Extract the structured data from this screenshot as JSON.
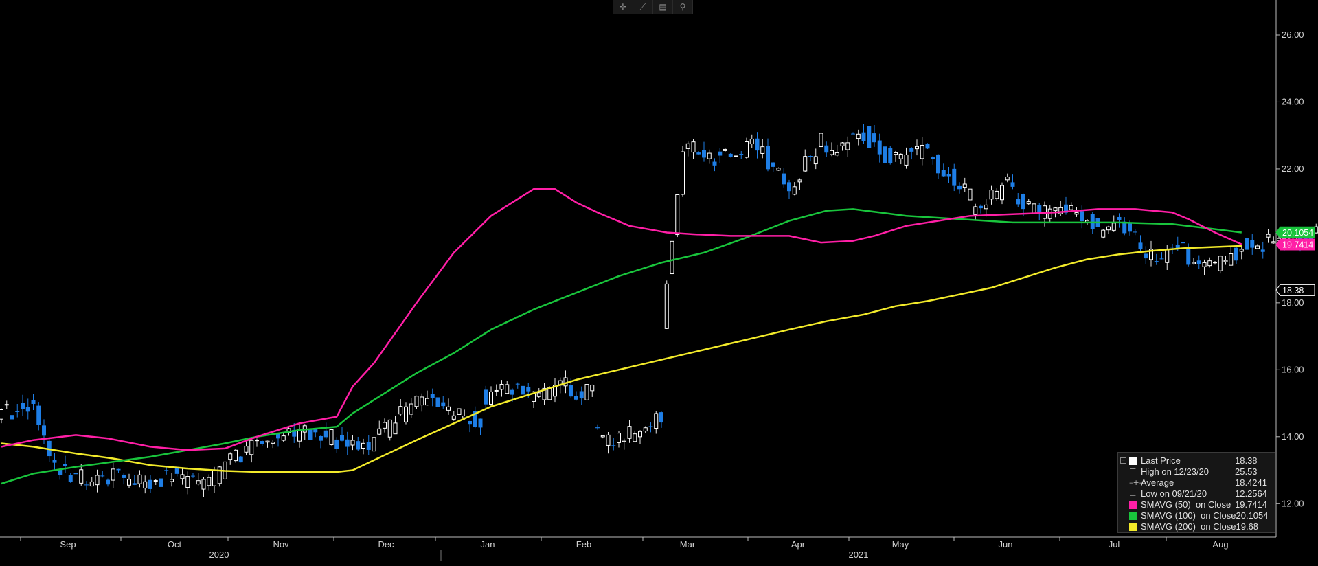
{
  "toolbar": {
    "icons": [
      "crosshair-icon",
      "draw-icon",
      "table-icon",
      "zoom-icon"
    ]
  },
  "chart_data": {
    "type": "candlestick",
    "grid": false,
    "legend_position": "bottom-right",
    "ylim": [
      11.0,
      26.8
    ],
    "y_ticks": [
      "12.00",
      "14.00",
      "16.00",
      "18.00",
      "20.00",
      "22.00",
      "24.00",
      "26.00"
    ],
    "month_labels": [
      "Sep",
      "Oct",
      "Nov",
      "Dec",
      "Jan",
      "Feb",
      "Mar",
      "Apr",
      "May",
      "Jun",
      "Jul",
      "Aug"
    ],
    "year_labels": [
      "2020",
      "2021"
    ],
    "colors": {
      "up": "#ffffff",
      "down": "#1e7ee6",
      "sma50": "#ff1fa6",
      "sma100": "#19c43c",
      "sma200": "#f2ea2a"
    },
    "price_tags": [
      {
        "value": 20.1054,
        "label": "20.1054",
        "color": "#19c43c"
      },
      {
        "value": 19.7414,
        "label": "19.7414",
        "color": "#ff1fa6"
      },
      {
        "value": 18.38,
        "label": "18.38",
        "color": "#ffffff"
      }
    ],
    "legend": [
      {
        "label": "Last Price",
        "value": "18.38",
        "kind": "box",
        "color": "#ffffff"
      },
      {
        "label": "High on 12/23/20",
        "value": "25.53",
        "kind": "glyph",
        "glyph": "⊤"
      },
      {
        "label": "Average",
        "value": "18.4241",
        "kind": "glyph",
        "glyph": "–+–"
      },
      {
        "label": "Low on 09/21/20",
        "value": "12.2564",
        "kind": "glyph",
        "glyph": "⊥"
      },
      {
        "label": "SMAVG (50)  on Close",
        "value": "19.7414",
        "kind": "box",
        "color": "#ff1fa6"
      },
      {
        "label": "SMAVG (100)  on Close",
        "value": "20.1054",
        "kind": "box",
        "color": "#19c43c"
      },
      {
        "label": "SMAVG (200)  on Close",
        "value": "19.68",
        "kind": "box",
        "color": "#f2ea2a"
      }
    ],
    "segments": [
      [
        14.8,
        14.7,
        2
      ],
      [
        14.6,
        14.8,
        3
      ],
      [
        14.9,
        15.0,
        2
      ],
      [
        15.0,
        13.1,
        4
      ],
      [
        13.0,
        12.8,
        6
      ],
      [
        12.7,
        12.8,
        6
      ],
      [
        12.8,
        12.7,
        6
      ],
      [
        12.6,
        12.9,
        4
      ],
      [
        12.8,
        12.6,
        5
      ],
      [
        12.6,
        13.0,
        5
      ],
      [
        13.2,
        13.8,
        6
      ],
      [
        13.9,
        14.2,
        6
      ],
      [
        14.1,
        14.1,
        6
      ],
      [
        14.1,
        13.7,
        5
      ],
      [
        13.6,
        13.8,
        5
      ],
      [
        13.9,
        14.8,
        6
      ],
      [
        14.9,
        15.1,
        5
      ],
      [
        15.0,
        14.7,
        4
      ],
      [
        14.6,
        14.5,
        5
      ],
      [
        15.2,
        15.4,
        5
      ],
      [
        15.4,
        15.2,
        5
      ],
      [
        15.3,
        15.5,
        6
      ],
      [
        15.4,
        15.3,
        5
      ],
      [
        14.2,
        13.7,
        4
      ],
      [
        13.7,
        14.4,
        5
      ],
      [
        14.4,
        14.6,
        4
      ],
      [
        17.5,
        22.6,
        4
      ],
      [
        22.7,
        22.3,
        7
      ],
      [
        22.3,
        22.8,
        7
      ],
      [
        22.6,
        21.5,
        6
      ],
      [
        21.5,
        22.8,
        6
      ],
      [
        22.5,
        23.1,
        8
      ],
      [
        23.0,
        22.3,
        5
      ],
      [
        22.3,
        22.5,
        7
      ],
      [
        22.3,
        21.2,
        8
      ],
      [
        20.8,
        21.5,
        7
      ],
      [
        21.4,
        20.6,
        6
      ],
      [
        20.7,
        20.9,
        5
      ],
      [
        20.8,
        20.3,
        6
      ],
      [
        20.2,
        20.4,
        4
      ],
      [
        20.3,
        19.4,
        6
      ],
      [
        19.3,
        19.6,
        6
      ],
      [
        19.5,
        19.0,
        5
      ],
      [
        19.0,
        19.6,
        6
      ],
      [
        19.7,
        19.8,
        5
      ],
      [
        19.8,
        20.0,
        8
      ],
      [
        20.1,
        20.8,
        5
      ],
      [
        20.7,
        19.9,
        5
      ],
      [
        19.8,
        19.7,
        6
      ],
      [
        19.8,
        19.6,
        6
      ],
      [
        19.6,
        19.4,
        6
      ],
      [
        19.4,
        19.5,
        5
      ],
      [
        19.5,
        19.2,
        8
      ],
      [
        19.3,
        19.6,
        5
      ],
      [
        19.6,
        19.9,
        4
      ],
      [
        19.9,
        20.1,
        4
      ],
      [
        20.1,
        20.4,
        5
      ],
      [
        20.3,
        20.1,
        5
      ],
      [
        20.0,
        19.9,
        4
      ],
      [
        19.9,
        19.7,
        5
      ],
      [
        19.7,
        19.5,
        5
      ],
      [
        19.5,
        19.3,
        5
      ],
      [
        19.3,
        20.0,
        4
      ],
      [
        20.0,
        20.8,
        5
      ],
      [
        20.8,
        20.7,
        4
      ],
      [
        20.8,
        21.7,
        4
      ],
      [
        21.8,
        22.2,
        5
      ],
      [
        22.3,
        22.5,
        5
      ],
      [
        20.1,
        18.8,
        4
      ],
      [
        18.9,
        19.6,
        5
      ],
      [
        19.8,
        20.4,
        4
      ],
      [
        20.5,
        21.5,
        4
      ],
      [
        21.4,
        20.9,
        7
      ],
      [
        20.8,
        20.2,
        5
      ],
      [
        20.3,
        20.6,
        5
      ],
      [
        20.6,
        20.4,
        5
      ],
      [
        20.7,
        21.3,
        5
      ],
      [
        21.2,
        20.8,
        4
      ],
      [
        20.7,
        20.3,
        4
      ],
      [
        20.3,
        20.0,
        5
      ],
      [
        19.9,
        19.5,
        4
      ],
      [
        19.6,
        19.9,
        5
      ],
      [
        20.0,
        20.3,
        5
      ],
      [
        20.3,
        20.4,
        5
      ],
      [
        20.4,
        20.2,
        4
      ],
      [
        18.2,
        16.9,
        4
      ],
      [
        17.2,
        17.6,
        5
      ],
      [
        18.0,
        17.9,
        4
      ],
      [
        17.6,
        17.1,
        4
      ],
      [
        17.0,
        17.1,
        3
      ],
      [
        17.3,
        17.6,
        3
      ],
      [
        18.0,
        18.4,
        3
      ]
    ],
    "sma50": [
      [
        0,
        13.7
      ],
      [
        6,
        13.9
      ],
      [
        14,
        14.05
      ],
      [
        20,
        13.95
      ],
      [
        28,
        13.7
      ],
      [
        35,
        13.6
      ],
      [
        42,
        13.65
      ],
      [
        48,
        14.0
      ],
      [
        56,
        14.4
      ],
      [
        63,
        14.6
      ],
      [
        66,
        15.5
      ],
      [
        70,
        16.2
      ],
      [
        78,
        18.0
      ],
      [
        85,
        19.5
      ],
      [
        92,
        20.6
      ],
      [
        100,
        21.4
      ],
      [
        104,
        21.4
      ],
      [
        108,
        21.0
      ],
      [
        112,
        20.7
      ],
      [
        118,
        20.3
      ],
      [
        125,
        20.1
      ],
      [
        130,
        20.05
      ],
      [
        137,
        20.0
      ],
      [
        144,
        20.0
      ],
      [
        148,
        20.0
      ],
      [
        154,
        19.8
      ],
      [
        160,
        19.85
      ],
      [
        164,
        20.0
      ],
      [
        170,
        20.3
      ],
      [
        176,
        20.45
      ],
      [
        182,
        20.6
      ],
      [
        190,
        20.65
      ],
      [
        198,
        20.7
      ],
      [
        206,
        20.8
      ],
      [
        213,
        20.8
      ],
      [
        220,
        20.7
      ],
      [
        223,
        20.5
      ],
      [
        228,
        20.1
      ],
      [
        233,
        19.75
      ]
    ],
    "sma100": [
      [
        0,
        12.6
      ],
      [
        6,
        12.9
      ],
      [
        14,
        13.1
      ],
      [
        21,
        13.25
      ],
      [
        28,
        13.4
      ],
      [
        35,
        13.6
      ],
      [
        42,
        13.8
      ],
      [
        48,
        14.0
      ],
      [
        56,
        14.2
      ],
      [
        63,
        14.3
      ],
      [
        66,
        14.7
      ],
      [
        70,
        15.1
      ],
      [
        78,
        15.9
      ],
      [
        85,
        16.5
      ],
      [
        92,
        17.2
      ],
      [
        100,
        17.8
      ],
      [
        108,
        18.3
      ],
      [
        116,
        18.8
      ],
      [
        124,
        19.2
      ],
      [
        132,
        19.5
      ],
      [
        140,
        19.95
      ],
      [
        148,
        20.45
      ],
      [
        155,
        20.75
      ],
      [
        160,
        20.8
      ],
      [
        165,
        20.7
      ],
      [
        170,
        20.6
      ],
      [
        180,
        20.5
      ],
      [
        190,
        20.4
      ],
      [
        200,
        20.4
      ],
      [
        210,
        20.4
      ],
      [
        220,
        20.35
      ],
      [
        228,
        20.2
      ],
      [
        233,
        20.1
      ]
    ],
    "sma200": [
      [
        0,
        13.8
      ],
      [
        6,
        13.7
      ],
      [
        14,
        13.5
      ],
      [
        21,
        13.35
      ],
      [
        28,
        13.15
      ],
      [
        35,
        13.05
      ],
      [
        42,
        12.98
      ],
      [
        48,
        12.95
      ],
      [
        56,
        12.95
      ],
      [
        63,
        12.95
      ],
      [
        66,
        13.0
      ],
      [
        70,
        13.3
      ],
      [
        78,
        13.9
      ],
      [
        85,
        14.4
      ],
      [
        92,
        14.9
      ],
      [
        100,
        15.3
      ],
      [
        108,
        15.7
      ],
      [
        116,
        16.0
      ],
      [
        124,
        16.3
      ],
      [
        132,
        16.6
      ],
      [
        140,
        16.9
      ],
      [
        148,
        17.2
      ],
      [
        155,
        17.45
      ],
      [
        162,
        17.65
      ],
      [
        168,
        17.9
      ],
      [
        174,
        18.05
      ],
      [
        180,
        18.25
      ],
      [
        186,
        18.45
      ],
      [
        192,
        18.75
      ],
      [
        198,
        19.05
      ],
      [
        204,
        19.3
      ],
      [
        210,
        19.45
      ],
      [
        216,
        19.55
      ],
      [
        222,
        19.63
      ],
      [
        228,
        19.67
      ],
      [
        233,
        19.7
      ]
    ]
  }
}
